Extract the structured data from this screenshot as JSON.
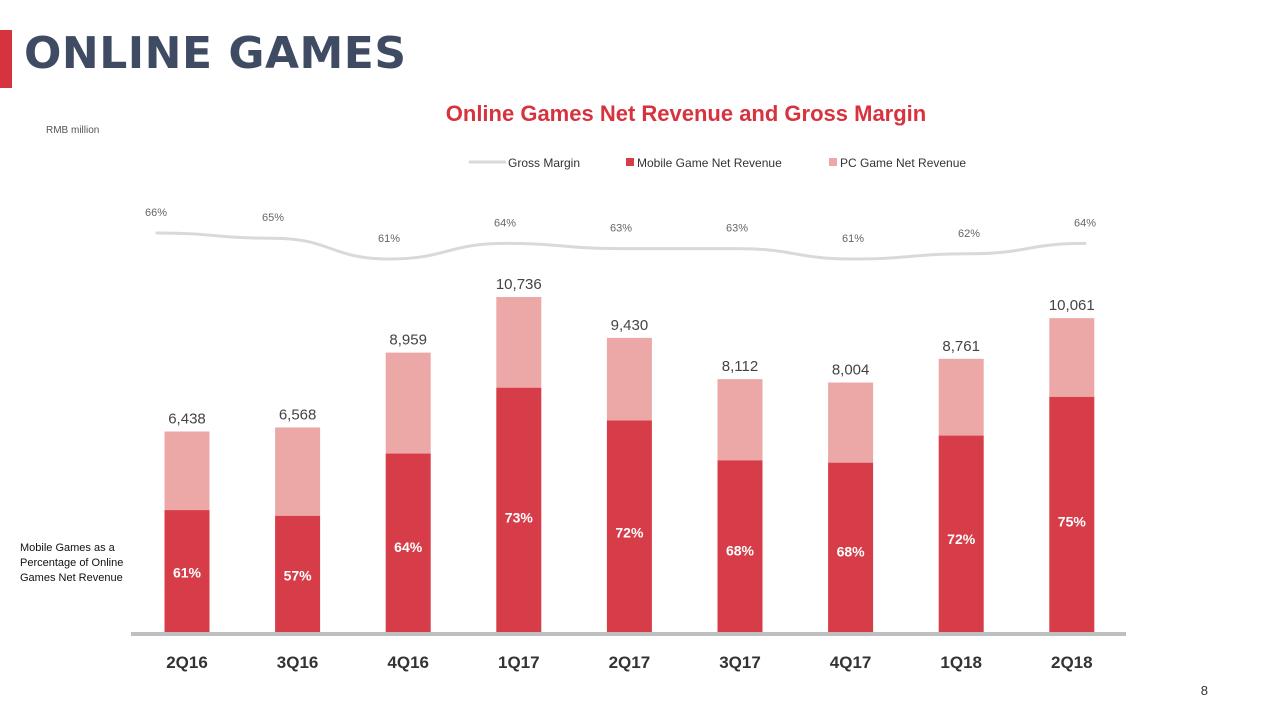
{
  "slide": {
    "title": "ONLINE GAMES",
    "page_number": "8",
    "unit_label": "RMB million",
    "side_note": "Mobile Games as a Percentage of Online Games Net Revenue"
  },
  "colors": {
    "accent": "#d7333f",
    "title_text": "#3f4a63",
    "mobile": "#d63d48",
    "pc": "#eba8a7",
    "gross_margin_line": "#d9d9d9",
    "axis": "#bfbfbf"
  },
  "chart_data": {
    "type": "bar",
    "stacked": true,
    "title": "Online Games Net Revenue and Gross Margin",
    "ylabel": "RMB million",
    "categories": [
      "2Q16",
      "3Q16",
      "4Q16",
      "1Q17",
      "2Q17",
      "3Q17",
      "4Q17",
      "1Q18",
      "2Q18"
    ],
    "totals": [
      6438,
      6568,
      8959,
      10736,
      9430,
      8112,
      8004,
      8761,
      10061
    ],
    "total_labels": [
      "6,438",
      "6,568",
      "8,959",
      "10,736",
      "9,430",
      "8,112",
      "8,004",
      "8,761",
      "10,061"
    ],
    "mobile_share_labels": [
      "61%",
      "57%",
      "64%",
      "73%",
      "72%",
      "68%",
      "68%",
      "72%",
      "75%"
    ],
    "mobile_share": [
      61,
      57,
      64,
      73,
      72,
      68,
      68,
      72,
      75
    ],
    "gross_margin_labels": [
      "66%",
      "65%",
      "61%",
      "64%",
      "63%",
      "63%",
      "61%",
      "62%",
      "64%"
    ],
    "gross_margin": [
      66,
      65,
      61,
      64,
      63,
      63,
      61,
      62,
      64
    ],
    "series": [
      {
        "name": "Gross Margin",
        "type": "line"
      },
      {
        "name": "Mobile Game Net Revenue",
        "type": "bar"
      },
      {
        "name": "PC Game Net Revenue",
        "type": "bar"
      }
    ],
    "legend_position": "top-center",
    "grid": false
  }
}
